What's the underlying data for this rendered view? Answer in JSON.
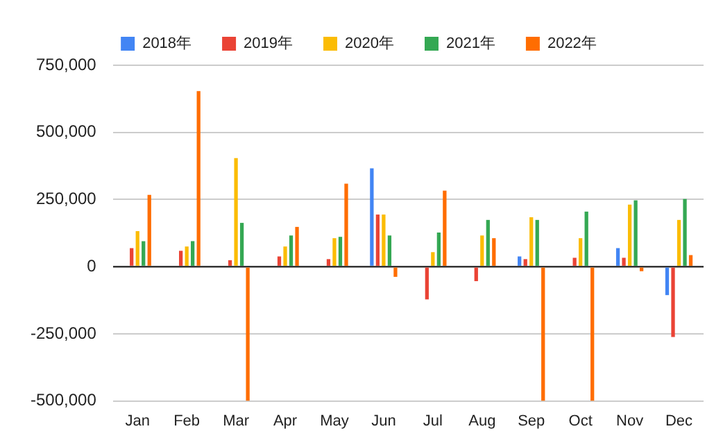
{
  "chart_data": {
    "type": "bar",
    "categories": [
      "Jan",
      "Feb",
      "Mar",
      "Apr",
      "May",
      "Jun",
      "Jul",
      "Aug",
      "Sep",
      "Oct",
      "Nov",
      "Dec"
    ],
    "series": [
      {
        "name": "2018年",
        "color": "#4285f4",
        "values": [
          null,
          null,
          null,
          null,
          null,
          366000,
          null,
          null,
          38000,
          null,
          69000,
          -106000
        ]
      },
      {
        "name": "2019年",
        "color": "#ea4335",
        "values": [
          69000,
          59000,
          24000,
          38000,
          28000,
          194000,
          -122000,
          -54000,
          28000,
          33000,
          33000,
          -262000
        ]
      },
      {
        "name": "2020年",
        "color": "#fbbc04",
        "values": [
          132000,
          75000,
          404000,
          75000,
          106000,
          194000,
          54000,
          116000,
          184000,
          106000,
          231000,
          174000
        ]
      },
      {
        "name": "2021年",
        "color": "#34a853",
        "values": [
          95000,
          95000,
          163000,
          116000,
          111000,
          116000,
          127000,
          174000,
          174000,
          205000,
          247000,
          252000
        ]
      },
      {
        "name": "2022年",
        "color": "#ff6d01",
        "values": [
          267000,
          654000,
          -500000,
          148000,
          309000,
          -38000,
          283000,
          106000,
          -500000,
          -500000,
          -17000,
          43000
        ]
      }
    ],
    "ylim": [
      -500000,
      750000
    ],
    "yticks": [
      {
        "value": -500000,
        "label": "-500,000"
      },
      {
        "value": -250000,
        "label": "-250,000"
      },
      0,
      {
        "value": 250000,
        "label": "250,000"
      },
      {
        "value": 500000,
        "label": "500,000"
      },
      {
        "value": 750000,
        "label": "750,000"
      }
    ],
    "grid": "y",
    "legend": "top"
  }
}
